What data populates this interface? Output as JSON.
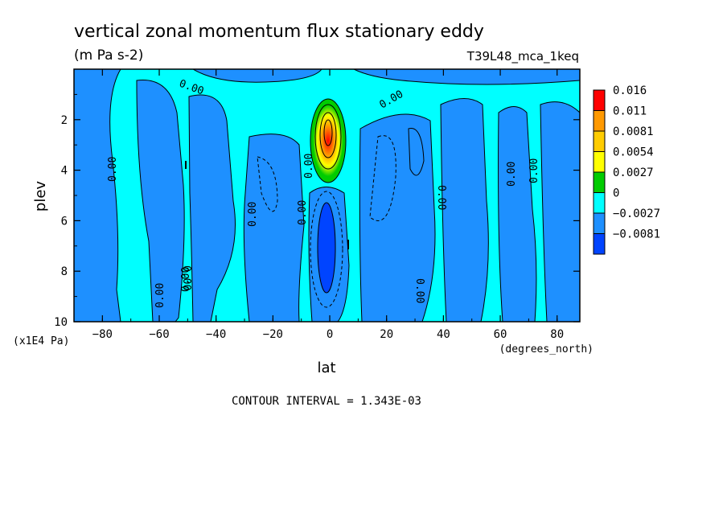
{
  "chart_data": {
    "type": "contour",
    "title": "vertical zonal momentum flux stationary eddy",
    "units": "(m Pa s-2)",
    "run_label": "T39L48_mca_1keq",
    "xlabel": "lat",
    "x_units": "(degrees_north)",
    "ylabel": "plev",
    "y_units": "(x1E4 Pa)",
    "xlim": [
      -90,
      88
    ],
    "ylim": [
      10,
      0
    ],
    "x_ticks": [
      "-80",
      "-60",
      "-40",
      "-20",
      "0",
      "20",
      "40",
      "60",
      "80"
    ],
    "y_ticks": [
      "2",
      "4",
      "6",
      "8",
      "10"
    ],
    "footer": "CONTOUR INTERVAL = 1.343E-03",
    "contour_labels": [
      "0.00",
      "0.00",
      "0.00",
      "0.00",
      "0.00",
      "0.00",
      "0.00",
      "0.00",
      "0.00",
      "0.00",
      "0.00",
      "0.00",
      "0.00"
    ],
    "colorbar": {
      "labels": [
        "0.016",
        "0.011",
        "0.0081",
        "0.0054",
        "0.0027",
        "0",
        "-0.0027",
        "-0.0081"
      ],
      "colors": [
        "#ff0000",
        "#ff9900",
        "#ffcc00",
        "#ffff00",
        "#00cc00",
        "#00ffff",
        "#1e90ff",
        "#0044ff"
      ]
    },
    "features": {
      "positive_max": {
        "lat": 1,
        "plev": 2.8,
        "value": 0.016
      },
      "negative_min": {
        "lat": 0,
        "plev": 7.2,
        "value": -0.0081
      }
    }
  }
}
